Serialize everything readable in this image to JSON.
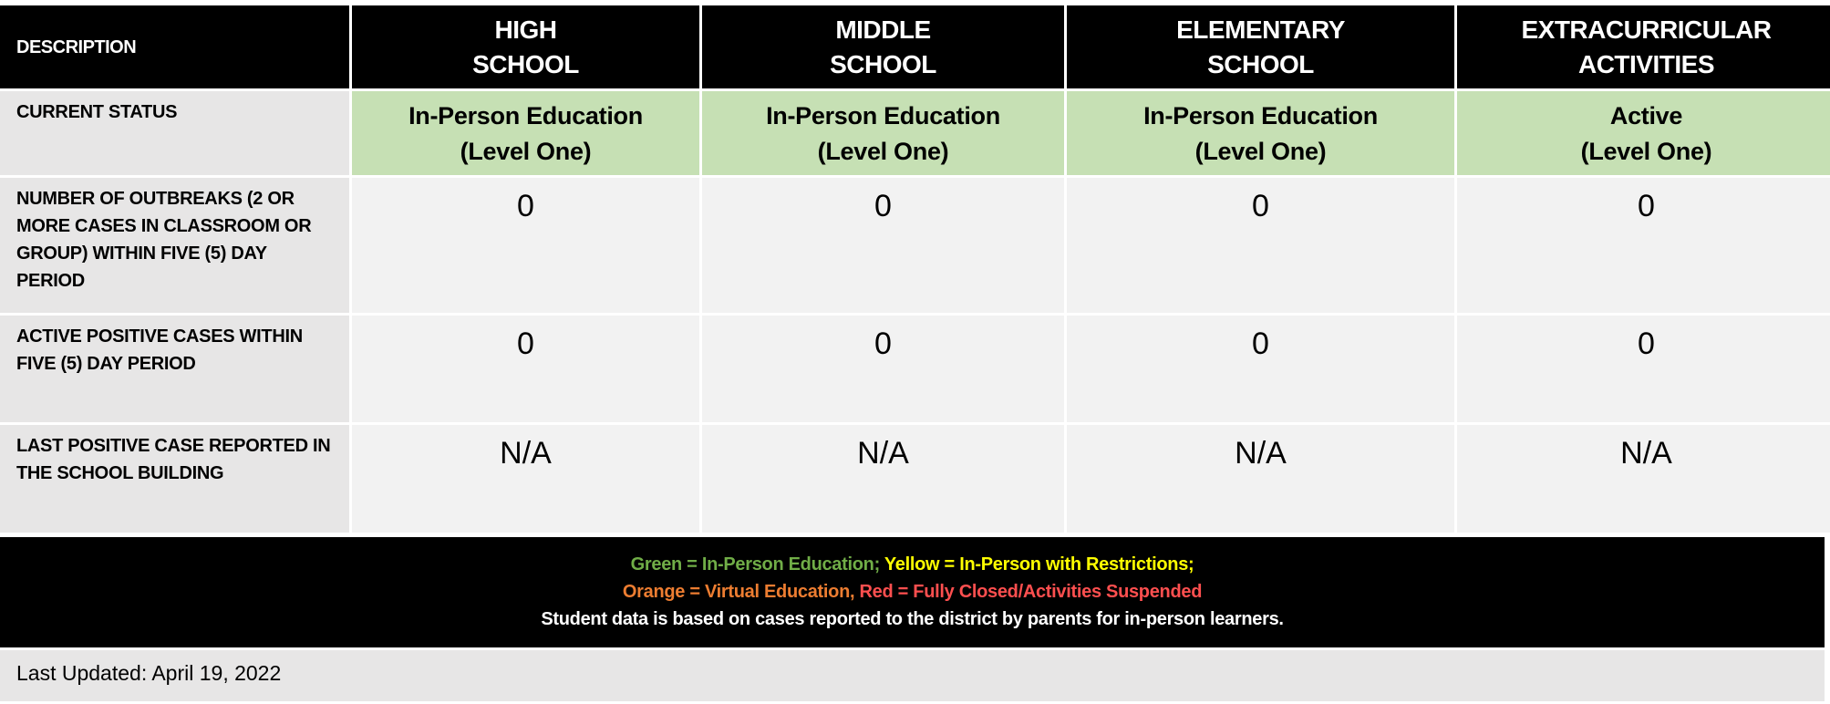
{
  "table": {
    "headers": [
      "DESCRIPTION",
      "HIGH\nSCHOOL",
      "MIDDLE\nSCHOOL",
      "ELEMENTARY\nSCHOOL",
      "EXTRACURRICULAR\nACTIVITIES"
    ],
    "rows": [
      {
        "label": "CURRENT STATUS",
        "values": [
          "In-Person Education\n(Level One)",
          "In-Person Education\n(Level One)",
          "In-Person Education\n(Level One)",
          "Active\n(Level One)"
        ]
      },
      {
        "label": "NUMBER OF OUTBREAKS (2 OR MORE CASES IN CLASSROOM OR GROUP) WITHIN FIVE (5) DAY PERIOD",
        "values": [
          "0",
          "0",
          "0",
          "0"
        ]
      },
      {
        "label": "ACTIVE POSITIVE CASES WITHIN FIVE (5) DAY PERIOD",
        "values": [
          "0",
          "0",
          "0",
          "0"
        ]
      },
      {
        "label": "LAST POSITIVE CASE REPORTED IN THE SCHOOL BUILDING",
        "values": [
          "N/A",
          "N/A",
          "N/A",
          "N/A"
        ]
      }
    ]
  },
  "legend": {
    "green": "Green = In-Person Education;",
    "yellow": " Yellow = In-Person with Restrictions;",
    "orange": "Orange = Virtual Education,",
    "red": " Red = Fully Closed/Activities Suspended",
    "note": "Student data is based on cases reported to the district by parents for in-person learners."
  },
  "colors": {
    "green": "#70ad47",
    "yellow": "#ffff00",
    "orange": "#ed7d31",
    "red": "#ff4f4f",
    "status_fill": "#c6e0b4"
  },
  "last_updated": "Last Updated: April 19, 2022"
}
